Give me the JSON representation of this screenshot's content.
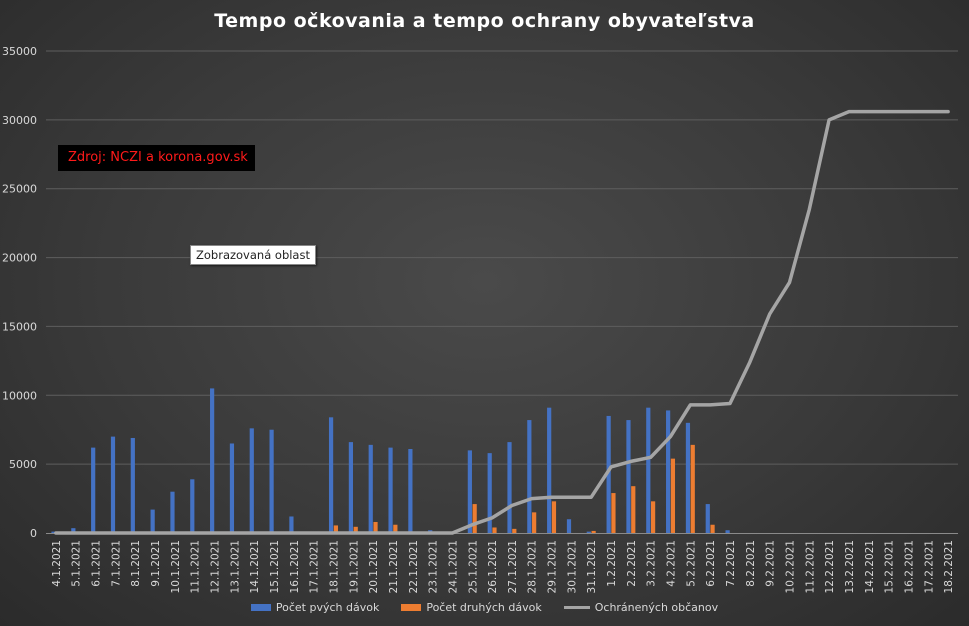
{
  "chart_data": {
    "type": "bar",
    "title": "Tempo očkovania a tempo ochrany obyvateľstva",
    "source_note": "Zdroj:  NCZI a korona.gov.sk",
    "tooltip": "Zobrazovaná oblast",
    "ylim": [
      0,
      35000
    ],
    "yticks": [
      "0",
      "5000",
      "10000",
      "15000",
      "20000",
      "25000",
      "30000",
      "35000"
    ],
    "grid": true,
    "legend_position": "bottom",
    "categories": [
      "4.1.2021",
      "5.1.2021",
      "6.1.2021",
      "7.1.2021",
      "8.1.2021",
      "9.1.2021",
      "10.1.2021",
      "11.1.2021",
      "12.1.2021",
      "13.1.2021",
      "14.1.2021",
      "15.1.2021",
      "16.1.2021",
      "17.1.2021",
      "18.1.2021",
      "19.1.2021",
      "20.1.2021",
      "21.1.2021",
      "22.1.2021",
      "23.1.2021",
      "24.1.2021",
      "25.1.2021",
      "26.1.2021",
      "27.1.2021",
      "28.1.2021",
      "29.1.2021",
      "30.1.2021",
      "31.1.2021",
      "1.2.2021",
      "2.2.2021",
      "3.2.2021",
      "4.2.2021",
      "5.2.2021",
      "6.2.2021",
      "7.2.2021",
      "8.2.2021",
      "9.2.2021",
      "10.2.2021",
      "11.2.2021",
      "12.2.2021",
      "13.2.2021",
      "14.2.2021",
      "15.2.2021",
      "16.2.2021",
      "17.2.2021",
      "18.2.2021"
    ],
    "series": [
      {
        "name": "Počet pvých dávok",
        "type": "bar",
        "color": "#4472c4",
        "values": [
          100,
          350,
          6200,
          7000,
          6900,
          1700,
          3000,
          3900,
          10500,
          6500,
          7600,
          7500,
          1200,
          0,
          8400,
          6600,
          6400,
          6200,
          6100,
          200,
          0,
          6000,
          5800,
          6600,
          8200,
          9100,
          1000,
          100,
          8500,
          8200,
          9100,
          8900,
          8000,
          2100,
          200,
          0,
          0,
          0,
          0,
          0,
          0,
          0,
          0,
          0,
          0,
          0
        ]
      },
      {
        "name": "Počet druhých dávok",
        "type": "bar",
        "color": "#ed7d31",
        "values": [
          0,
          0,
          0,
          0,
          0,
          0,
          0,
          0,
          0,
          0,
          0,
          0,
          0,
          0,
          550,
          450,
          800,
          600,
          0,
          0,
          0,
          2100,
          400,
          300,
          1500,
          2300,
          0,
          150,
          2900,
          3400,
          2300,
          5400,
          6400,
          600,
          0,
          0,
          0,
          0,
          0,
          0,
          0,
          0,
          0,
          0,
          0,
          0
        ]
      },
      {
        "name": "Ochránených občanov",
        "type": "line",
        "color": "#a5a5a5",
        "values": [
          0,
          0,
          0,
          0,
          0,
          0,
          0,
          0,
          0,
          0,
          0,
          0,
          0,
          0,
          0,
          0,
          0,
          0,
          0,
          0,
          0,
          600,
          1100,
          2000,
          2500,
          2600,
          2600,
          2600,
          4800,
          5200,
          5500,
          7000,
          9300,
          9300,
          9400,
          12400,
          15900,
          18200,
          23500,
          30000,
          30600,
          30600,
          30600,
          30600,
          30600,
          30600
        ]
      }
    ]
  }
}
